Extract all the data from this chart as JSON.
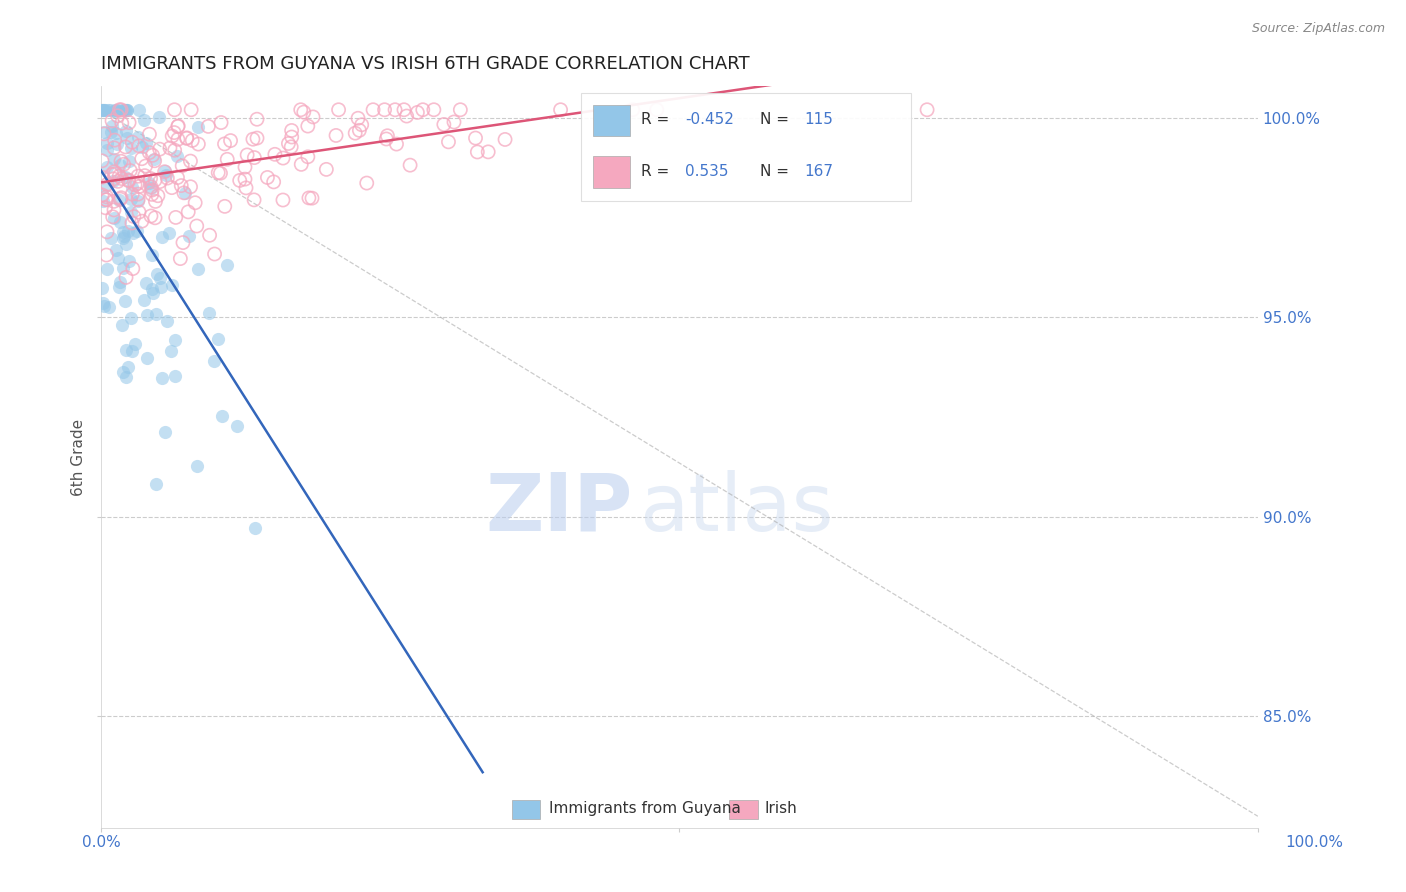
{
  "title": "IMMIGRANTS FROM GUYANA VS IRISH 6TH GRADE CORRELATION CHART",
  "source_text": "Source: ZipAtlas.com",
  "ylabel": "6th Grade",
  "y_tick_values": [
    0.85,
    0.9,
    0.95,
    1.0
  ],
  "x_range": [
    0.0,
    1.0
  ],
  "y_range": [
    0.822,
    1.008
  ],
  "blue_R": -0.452,
  "pink_R": 0.535,
  "blue_n": 115,
  "pink_n": 167,
  "blue_color": "#93c6e8",
  "pink_color": "#f5a8bf",
  "trend_blue_color": "#3366bb",
  "trend_pink_color": "#dd5577",
  "grid_color": "#cccccc",
  "title_color": "#222222",
  "axis_label_color": "#4477cc",
  "watermark_color": "#d0dff5",
  "background_color": "#ffffff",
  "legend_text_color": "#4477cc",
  "legend_r_color": "#cc3366"
}
